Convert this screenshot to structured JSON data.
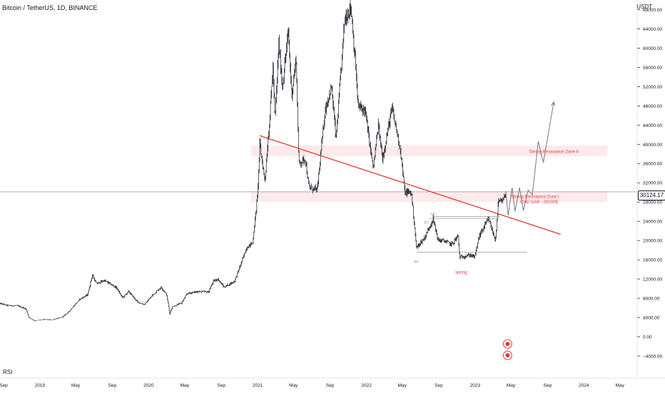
{
  "header": {
    "symbol_title": "Bitcoin / TetherUS, 1D, BINANCE",
    "currency": "USDT"
  },
  "indicator": {
    "label": "RSI"
  },
  "colors": {
    "annotation_red": "#e53935",
    "zone_fill": "#fde8e8",
    "candle": "#131722",
    "projection": "#787b86",
    "axis_text": "#131722",
    "grid": "#e0e3eb"
  },
  "chart_data": {
    "type": "candlestick",
    "title": "Bitcoin / TetherUS, 1D, BINANCE",
    "ylabel": "USDT",
    "ylim": [
      -5200,
      70000
    ],
    "xlim": [
      "2018-08-20",
      "2024-06-28"
    ],
    "current_price": 30124.17,
    "current_price_label": "30124.17",
    "y_ticks": [
      {
        "value": -4000,
        "label": "−4000.00"
      },
      {
        "value": 0,
        "label": "0.00"
      },
      {
        "value": 4000,
        "label": "4000.00"
      },
      {
        "value": 8000,
        "label": "8000.00"
      },
      {
        "value": 12000,
        "label": "12000.00"
      },
      {
        "value": 16000,
        "label": "16000.00"
      },
      {
        "value": 20000,
        "label": "20000.00"
      },
      {
        "value": 24000,
        "label": "24000.00"
      },
      {
        "value": 28000,
        "label": "28000.00"
      },
      {
        "value": 32000,
        "label": "32000.00"
      },
      {
        "value": 36000,
        "label": "36000.00"
      },
      {
        "value": 40000,
        "label": "40000.00"
      },
      {
        "value": 44000,
        "label": "44000.00"
      },
      {
        "value": 48000,
        "label": "48000.00"
      },
      {
        "value": 52000,
        "label": "52000.00"
      },
      {
        "value": 56000,
        "label": "56000.00"
      },
      {
        "value": 60000,
        "label": "60000.00"
      },
      {
        "value": 64000,
        "label": "64000.00"
      },
      {
        "value": 68000,
        "label": "68000.00"
      }
    ],
    "x_ticks": [
      {
        "date": "2018-09-01",
        "label": "Sep"
      },
      {
        "date": "2019-01-01",
        "label": "2019"
      },
      {
        "date": "2019-05-01",
        "label": "May"
      },
      {
        "date": "2019-09-01",
        "label": "Sep"
      },
      {
        "date": "2020-01-01",
        "label": "2020"
      },
      {
        "date": "2020-05-01",
        "label": "May"
      },
      {
        "date": "2020-09-01",
        "label": "Sep"
      },
      {
        "date": "2021-01-01",
        "label": "2021"
      },
      {
        "date": "2021-05-01",
        "label": "May"
      },
      {
        "date": "2021-09-01",
        "label": "Sep"
      },
      {
        "date": "2022-01-01",
        "label": "2022"
      },
      {
        "date": "2022-05-01",
        "label": "May"
      },
      {
        "date": "2022-09-01",
        "label": "Sep"
      },
      {
        "date": "2023-01-01",
        "label": "2023"
      },
      {
        "date": "2023-05-01",
        "label": "May"
      },
      {
        "date": "2023-09-01",
        "label": "Sep"
      },
      {
        "date": "2024-01-01",
        "label": "2024"
      },
      {
        "date": "2024-05-01",
        "label": "May"
      }
    ],
    "price_path": [
      [
        "2018-08-20",
        6900
      ],
      [
        "2018-09-15",
        6500
      ],
      [
        "2018-10-20",
        6400
      ],
      [
        "2018-11-15",
        5800
      ],
      [
        "2018-11-25",
        4000
      ],
      [
        "2018-12-15",
        3300
      ],
      [
        "2019-01-15",
        3600
      ],
      [
        "2019-02-08",
        3500
      ],
      [
        "2019-03-15",
        4000
      ],
      [
        "2019-04-05",
        5000
      ],
      [
        "2019-05-15",
        7800
      ],
      [
        "2019-06-10",
        8700
      ],
      [
        "2019-06-26",
        12800
      ],
      [
        "2019-07-10",
        11000
      ],
      [
        "2019-08-05",
        11700
      ],
      [
        "2019-09-15",
        10200
      ],
      [
        "2019-10-05",
        8100
      ],
      [
        "2019-10-26",
        9400
      ],
      [
        "2019-11-25",
        7200
      ],
      [
        "2019-12-18",
        6700
      ],
      [
        "2020-01-15",
        8700
      ],
      [
        "2020-02-12",
        10300
      ],
      [
        "2020-03-01",
        8800
      ],
      [
        "2020-03-12",
        4800
      ],
      [
        "2020-03-20",
        6200
      ],
      [
        "2020-04-20",
        7000
      ],
      [
        "2020-05-10",
        9000
      ],
      [
        "2020-06-15",
        9400
      ],
      [
        "2020-07-20",
        9300
      ],
      [
        "2020-08-05",
        11500
      ],
      [
        "2020-08-20",
        12000
      ],
      [
        "2020-09-10",
        10300
      ],
      [
        "2020-10-15",
        11500
      ],
      [
        "2020-11-05",
        15000
      ],
      [
        "2020-11-25",
        18500
      ],
      [
        "2020-12-15",
        19500
      ],
      [
        "2020-12-31",
        29000
      ],
      [
        "2021-01-08",
        40000
      ],
      [
        "2021-01-25",
        32500
      ],
      [
        "2021-02-10",
        45000
      ],
      [
        "2021-02-21",
        56000
      ],
      [
        "2021-02-28",
        45000
      ],
      [
        "2021-03-13",
        61000
      ],
      [
        "2021-03-25",
        52000
      ],
      [
        "2021-04-14",
        63500
      ],
      [
        "2021-04-25",
        50000
      ],
      [
        "2021-05-10",
        58000
      ],
      [
        "2021-05-19",
        36000
      ],
      [
        "2021-06-10",
        37000
      ],
      [
        "2021-06-22",
        31000
      ],
      [
        "2021-07-20",
        30500
      ],
      [
        "2021-08-15",
        47000
      ],
      [
        "2021-09-06",
        52000
      ],
      [
        "2021-09-21",
        41000
      ],
      [
        "2021-10-20",
        66000
      ],
      [
        "2021-11-10",
        68500
      ],
      [
        "2021-11-25",
        57000
      ],
      [
        "2021-12-04",
        48000
      ],
      [
        "2021-12-28",
        47000
      ],
      [
        "2022-01-10",
        41000
      ],
      [
        "2022-01-24",
        35000
      ],
      [
        "2022-02-10",
        44000
      ],
      [
        "2022-02-24",
        37000
      ],
      [
        "2022-03-28",
        47500
      ],
      [
        "2022-04-25",
        39000
      ],
      [
        "2022-05-10",
        30000
      ],
      [
        "2022-06-01",
        30000
      ],
      [
        "2022-06-18",
        18500
      ],
      [
        "2022-07-15",
        20500
      ],
      [
        "2022-08-13",
        24500
      ],
      [
        "2022-08-30",
        20000
      ],
      [
        "2022-09-15",
        20000
      ],
      [
        "2022-10-15",
        19200
      ],
      [
        "2022-11-05",
        21000
      ],
      [
        "2022-11-10",
        16500
      ],
      [
        "2022-12-15",
        17000
      ],
      [
        "2022-12-31",
        16600
      ],
      [
        "2023-01-15",
        21000
      ],
      [
        "2023-02-15",
        24500
      ],
      [
        "2023-03-10",
        20000
      ],
      [
        "2023-03-20",
        28000
      ],
      [
        "2023-04-05",
        28200
      ],
      [
        "2023-04-14",
        30124
      ]
    ],
    "trendline": {
      "start": [
        "2021-01-08",
        41800
      ],
      "end": [
        "2023-10-15",
        21300
      ]
    },
    "zones": [
      {
        "name": "Strong Resistance Zone II",
        "y_range": [
          37500,
          39800
        ],
        "x_range": [
          "2020-12-10",
          "2024-03-20"
        ],
        "label_at": [
          "2023-07-01",
          38500
        ]
      },
      {
        "name": "Strong Resistance Zone I",
        "y_range": [
          28000,
          30200
        ],
        "x_range": [
          "2020-12-10",
          "2024-03-20"
        ],
        "label_at": [
          "2023-05-01",
          29100
        ]
      }
    ],
    "annotations": [
      {
        "text": "CME GAP ~28100$",
        "at": [
          "2023-06-01",
          27750
        ]
      },
      {
        "text": "SC",
        "at": [
          "2022-06-18",
          15400
        ]
      },
      {
        "text": "spring",
        "at": [
          "2022-11-15",
          13100
        ]
      },
      {
        "text": "AR",
        "at": [
          "2022-08-13",
          25300
        ]
      },
      {
        "text": "ST",
        "at": [
          "2022-07-20",
          23500
        ]
      }
    ],
    "range_lines": [
      {
        "y": 17600,
        "x_range": [
          "2022-06-18",
          "2023-06-25"
        ]
      },
      {
        "y": 24600,
        "x_range": [
          "2022-08-01",
          "2023-03-25"
        ]
      },
      {
        "y": 25000,
        "x_range": [
          "2022-08-13",
          "2023-03-25"
        ]
      }
    ],
    "projection_path": [
      [
        "2023-04-14",
        30124
      ],
      [
        "2023-04-22",
        25200
      ],
      [
        "2023-05-05",
        31000
      ],
      [
        "2023-05-15",
        26000
      ],
      [
        "2023-05-30",
        31000
      ],
      [
        "2023-06-12",
        26200
      ],
      [
        "2023-06-28",
        30500
      ],
      [
        "2023-07-12",
        29500
      ],
      [
        "2023-08-01",
        40600
      ],
      [
        "2023-08-18",
        36200
      ],
      [
        "2023-09-22",
        48800
      ]
    ]
  }
}
